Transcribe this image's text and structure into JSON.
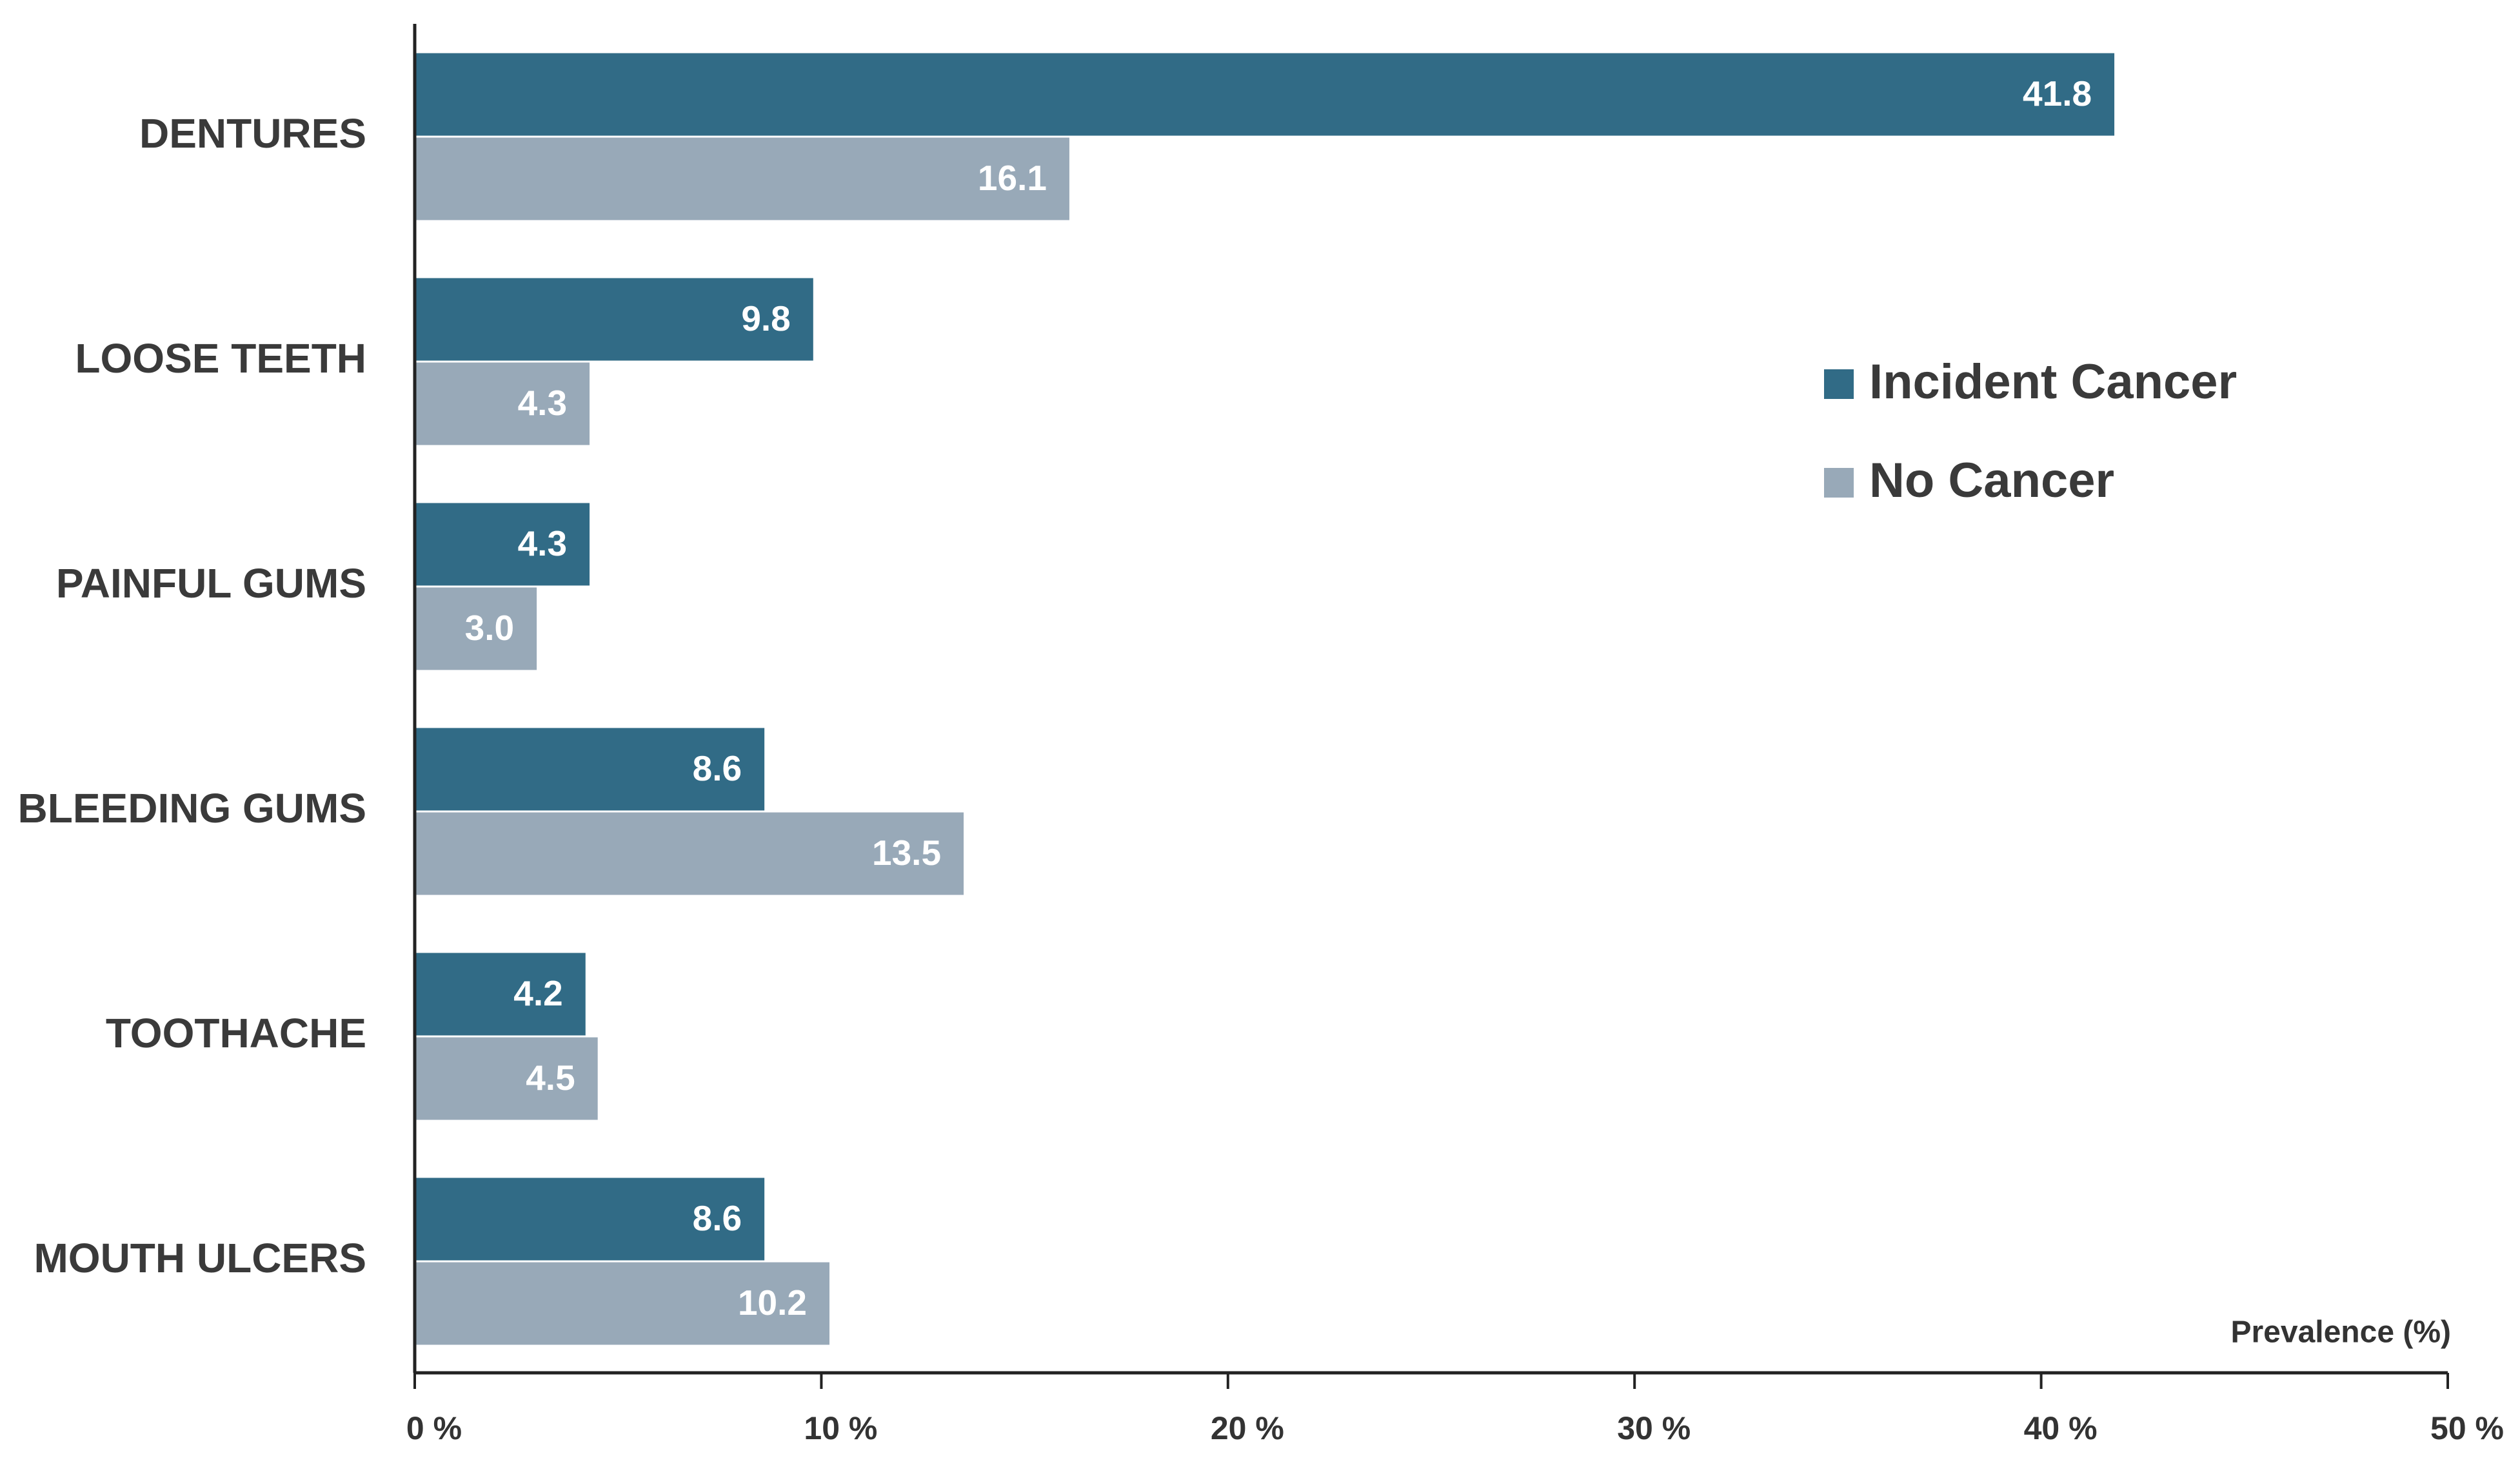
{
  "chart_data": {
    "type": "hbar",
    "categories": [
      "DENTURES",
      "LOOSE TEETH",
      "PAINFUL GUMS",
      "BLEEDING GUMS",
      "TOOTHACHE",
      "MOUTH ULCERS"
    ],
    "series": [
      {
        "name": "Incident Cancer",
        "color": "#316b86",
        "values": [
          41.8,
          9.8,
          4.3,
          8.6,
          4.2,
          8.6
        ]
      },
      {
        "name": "No Cancer",
        "color": "#98a9b8",
        "values": [
          16.1,
          4.3,
          3.0,
          13.5,
          4.5,
          10.2
        ],
        "value_labels": [
          "16.1",
          "4.3",
          "3.0",
          "13.5",
          "4.5",
          "10.2"
        ]
      }
    ],
    "x_label": "Prevalence (%)",
    "xlim": [
      0,
      50
    ],
    "xticks": [
      {
        "value": 0,
        "label": "0 %"
      },
      {
        "value": 10,
        "label": "10 %"
      },
      {
        "value": 20,
        "label": "20 %"
      },
      {
        "value": 30,
        "label": "30 %"
      },
      {
        "value": 40,
        "label": "40 %"
      },
      {
        "value": 50,
        "label": "50 %"
      }
    ],
    "legend": "right",
    "grid": false
  }
}
